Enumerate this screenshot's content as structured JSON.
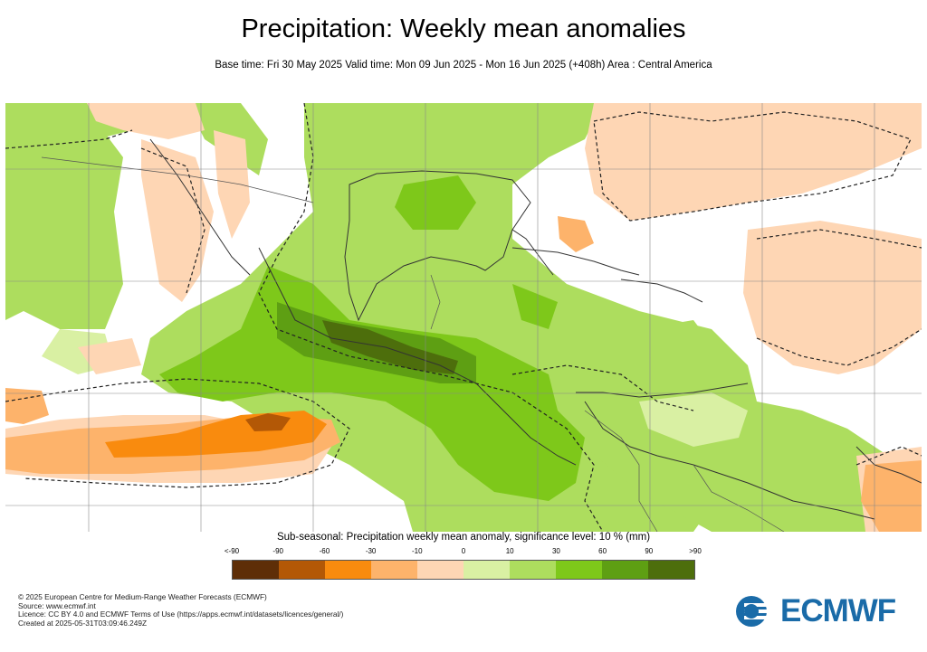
{
  "title": "Precipitation: Weekly mean anomalies",
  "subtitle": "Base time: Fri 30 May 2025 Valid time: Mon 09 Jun 2025 - Mon 16 Jun 2025 (+408h) Area : Central America",
  "colorbar": {
    "title": "Sub-seasonal: Precipitation weekly mean anomaly, significance level: 10 % (mm)",
    "ticks": [
      "<-90",
      "-90",
      "-60",
      "-30",
      "-10",
      "0",
      "10",
      "30",
      "60",
      "90",
      ">90"
    ],
    "colors": [
      "#5e2e07",
      "#b35806",
      "#f98b0e",
      "#fdb36b",
      "#fed6b4",
      "#d9f0a3",
      "#addd5e",
      "#7ec81a",
      "#5e9f13",
      "#4d6e0c"
    ]
  },
  "footer": {
    "copyright": "© 2025 European Centre for Medium-Range Weather Forecasts (ECMWF)",
    "source": "Source: www.ecmwf.int",
    "licence": "Licence: CC BY 4.0 and ECMWF Terms of Use (https://apps.ecmwf.int/datasets/licences/general/)",
    "created": "Created at 2025-05-31T03:09:46.249Z"
  },
  "logo": {
    "text": "ECMWF",
    "color": "#1a6ba8"
  }
}
